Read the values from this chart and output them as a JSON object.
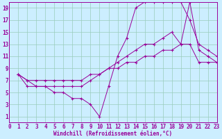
{
  "xlabel": "Windchill (Refroidissement éolien,°C)",
  "bg_color": "#cceeff",
  "line_color": "#990099",
  "grid_color": "#99ccbb",
  "series1_x": [
    1,
    2,
    3,
    4,
    5,
    6,
    7,
    8,
    9,
    10,
    11,
    12,
    13,
    14,
    15,
    16,
    17,
    18,
    19,
    20,
    21,
    22,
    23
  ],
  "series1_y": [
    8,
    7,
    6,
    6,
    5,
    5,
    4,
    4,
    3,
    1,
    6,
    11,
    14,
    19,
    20,
    20,
    20,
    20,
    20,
    17,
    13,
    12,
    11
  ],
  "series2_x": [
    1,
    2,
    3,
    4,
    5,
    6,
    7,
    8,
    9,
    10,
    11,
    12,
    13,
    14,
    15,
    16,
    17,
    18,
    19,
    20,
    21,
    22,
    23
  ],
  "series2_y": [
    8,
    6,
    6,
    6,
    6,
    6,
    6,
    6,
    7,
    8,
    9,
    10,
    11,
    12,
    13,
    13,
    14,
    15,
    13,
    20,
    12,
    11,
    10
  ],
  "series3_x": [
    1,
    2,
    3,
    4,
    5,
    6,
    7,
    8,
    9,
    10,
    11,
    12,
    13,
    14,
    15,
    16,
    17,
    18,
    19,
    20,
    21,
    22,
    23
  ],
  "series3_y": [
    8,
    7,
    7,
    7,
    7,
    7,
    7,
    7,
    8,
    8,
    9,
    9,
    10,
    10,
    11,
    11,
    12,
    12,
    13,
    13,
    10,
    10,
    10
  ],
  "xlim": [
    0,
    23
  ],
  "ylim": [
    0,
    20
  ],
  "xticks": [
    0,
    1,
    2,
    3,
    4,
    5,
    6,
    7,
    8,
    9,
    10,
    11,
    12,
    13,
    14,
    15,
    16,
    17,
    18,
    19,
    20,
    21,
    22,
    23
  ],
  "yticks": [
    1,
    3,
    5,
    7,
    9,
    11,
    13,
    15,
    17,
    19
  ],
  "font_size": 5.5,
  "label_font_size": 5.5
}
